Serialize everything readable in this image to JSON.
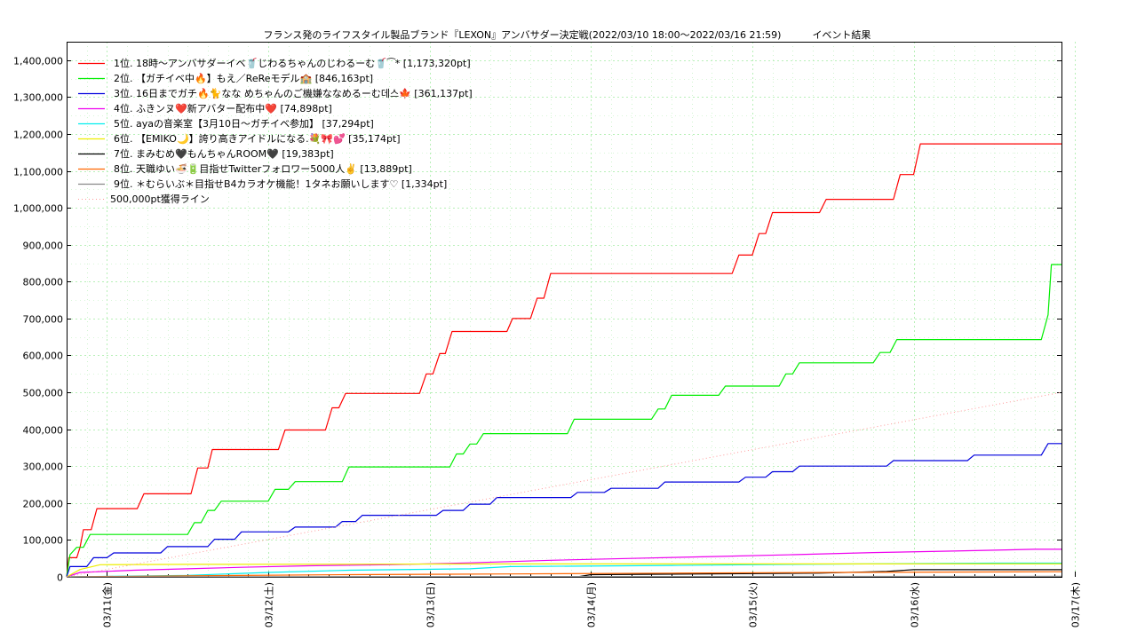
{
  "chart_data": {
    "type": "line",
    "title": "フランス発のライフスタイル製品ブランド『LEXON』アンバサダー決定戦(2022/03/10 18:00～2022/03/16 21:59)",
    "subtitle": "イベント結果",
    "xlabel": "",
    "ylabel": "",
    "x_range": [
      "2022-03-10 18:00",
      "2022-03-16 22:00"
    ],
    "ylim": [
      0,
      1450000
    ],
    "y_ticks": [
      "0",
      "100,000",
      "200,000",
      "300,000",
      "400,000",
      "500,000",
      "600,000",
      "700,000",
      "800,000",
      "900,000",
      "1,000,000",
      "1,100,000",
      "1,200,000",
      "1,300,000",
      "1,400,000"
    ],
    "x_ticks": [
      {
        "x": "2022-03-11 00:00",
        "label": "03/11(金)"
      },
      {
        "x": "2022-03-12 00:00",
        "label": "03/12(土)"
      },
      {
        "x": "2022-03-13 00:00",
        "label": "03/13(日)"
      },
      {
        "x": "2022-03-14 00:00",
        "label": "03/14(月)"
      },
      {
        "x": "2022-03-15 00:00",
        "label": "03/15(火)"
      },
      {
        "x": "2022-03-16 00:00",
        "label": "03/16(水)"
      },
      {
        "x": "2022-03-17 00:00",
        "label": "03/17(木)"
      }
    ],
    "grid": true,
    "legend_position": "top-left",
    "series": [
      {
        "name": "1位. 18時〜アンバサダーイベ🥤じわるちゃんのじわるーむ🥤⁀*",
        "label": "1位. 18時〜アンバサダーイベ🥤じわるちゃんのじわるーむ🥤⁀* [1,173,320pt]",
        "color": "#ff0000",
        "points": [
          [
            "2022-03-10 18:00",
            0
          ],
          [
            "2022-03-10 18:20",
            52000
          ],
          [
            "2022-03-10 19:30",
            52000
          ],
          [
            "2022-03-10 20:00",
            80000
          ],
          [
            "2022-03-10 20:30",
            128000
          ],
          [
            "2022-03-10 21:40",
            128000
          ],
          [
            "2022-03-10 22:30",
            185000
          ],
          [
            "2022-03-11 04:30",
            185000
          ],
          [
            "2022-03-11 05:30",
            225000
          ],
          [
            "2022-03-11 12:30",
            225000
          ],
          [
            "2022-03-11 13:30",
            295000
          ],
          [
            "2022-03-11 15:00",
            295000
          ],
          [
            "2022-03-11 15:40",
            345000
          ],
          [
            "2022-03-12 01:30",
            345000
          ],
          [
            "2022-03-12 02:30",
            398000
          ],
          [
            "2022-03-12 08:30",
            398000
          ],
          [
            "2022-03-12 09:30",
            458000
          ],
          [
            "2022-03-12 10:30",
            458000
          ],
          [
            "2022-03-12 11:30",
            497000
          ],
          [
            "2022-03-12 22:30",
            497000
          ],
          [
            "2022-03-12 23:30",
            550000
          ],
          [
            "2022-03-13 00:30",
            550000
          ],
          [
            "2022-03-13 01:30",
            605000
          ],
          [
            "2022-03-13 02:20",
            605000
          ],
          [
            "2022-03-13 03:20",
            665000
          ],
          [
            "2022-03-13 11:30",
            665000
          ],
          [
            "2022-03-13 12:20",
            700000
          ],
          [
            "2022-03-13 15:00",
            700000
          ],
          [
            "2022-03-13 16:00",
            755000
          ],
          [
            "2022-03-13 17:00",
            755000
          ],
          [
            "2022-03-13 18:00",
            822000
          ],
          [
            "2022-03-14 21:00",
            822000
          ],
          [
            "2022-03-14 22:00",
            872000
          ],
          [
            "2022-03-15 00:00",
            872000
          ],
          [
            "2022-03-15 01:00",
            930000
          ],
          [
            "2022-03-15 02:00",
            930000
          ],
          [
            "2022-03-15 03:00",
            987000
          ],
          [
            "2022-03-15 10:00",
            987000
          ],
          [
            "2022-03-15 11:00",
            1023000
          ],
          [
            "2022-03-15 21:00",
            1023000
          ],
          [
            "2022-03-15 22:00",
            1090000
          ],
          [
            "2022-03-16 00:00",
            1090000
          ],
          [
            "2022-03-16 01:00",
            1173320
          ],
          [
            "2022-03-16 22:00",
            1173320
          ]
        ]
      },
      {
        "name": "2位. 【ガチイベ中🔥】もえ／ReReモデル🏫",
        "label": "2位. 【ガチイベ中🔥】もえ／ReReモデル🏫 [846,163pt]",
        "color": "#00ee00",
        "points": [
          [
            "2022-03-10 18:00",
            0
          ],
          [
            "2022-03-10 18:30",
            60000
          ],
          [
            "2022-03-10 19:30",
            80000
          ],
          [
            "2022-03-10 20:30",
            80000
          ],
          [
            "2022-03-10 21:30",
            115000
          ],
          [
            "2022-03-11 12:00",
            115000
          ],
          [
            "2022-03-11 13:00",
            147000
          ],
          [
            "2022-03-11 14:00",
            147000
          ],
          [
            "2022-03-11 15:00",
            180000
          ],
          [
            "2022-03-11 16:00",
            180000
          ],
          [
            "2022-03-11 17:00",
            205000
          ],
          [
            "2022-03-12 00:00",
            205000
          ],
          [
            "2022-03-12 01:00",
            237000
          ],
          [
            "2022-03-12 03:00",
            237000
          ],
          [
            "2022-03-12 04:00",
            258000
          ],
          [
            "2022-03-12 11:00",
            258000
          ],
          [
            "2022-03-12 12:00",
            298000
          ],
          [
            "2022-03-13 03:00",
            298000
          ],
          [
            "2022-03-13 04:00",
            333000
          ],
          [
            "2022-03-13 05:00",
            333000
          ],
          [
            "2022-03-13 06:00",
            360000
          ],
          [
            "2022-03-13 07:00",
            360000
          ],
          [
            "2022-03-13 08:00",
            388000
          ],
          [
            "2022-03-13 20:30",
            388000
          ],
          [
            "2022-03-13 21:30",
            427000
          ],
          [
            "2022-03-14 09:00",
            427000
          ],
          [
            "2022-03-14 10:00",
            455000
          ],
          [
            "2022-03-14 11:00",
            455000
          ],
          [
            "2022-03-14 12:00",
            492000
          ],
          [
            "2022-03-14 19:00",
            492000
          ],
          [
            "2022-03-14 20:00",
            517000
          ],
          [
            "2022-03-15 04:00",
            517000
          ],
          [
            "2022-03-15 05:00",
            550000
          ],
          [
            "2022-03-15 06:00",
            550000
          ],
          [
            "2022-03-15 07:00",
            580000
          ],
          [
            "2022-03-15 18:00",
            580000
          ],
          [
            "2022-03-15 19:00",
            608000
          ],
          [
            "2022-03-15 20:30",
            608000
          ],
          [
            "2022-03-15 21:30",
            643000
          ],
          [
            "2022-03-16 19:00",
            643000
          ],
          [
            "2022-03-16 20:00",
            710000
          ],
          [
            "2022-03-16 20:30",
            846163
          ],
          [
            "2022-03-16 22:00",
            846163
          ]
        ]
      },
      {
        "name": "3位. 16日までガチ🔥🐈なな めちゃんのご機嫌ななめるーむ데스🍁",
        "label": "3位. 16日までガチ🔥🐈なな めちゃんのご機嫌ななめるーむ데스🍁 [361,137pt]",
        "color": "#0000dd",
        "points": [
          [
            "2022-03-10 18:00",
            0
          ],
          [
            "2022-03-10 18:30",
            28000
          ],
          [
            "2022-03-10 21:00",
            28000
          ],
          [
            "2022-03-10 22:00",
            52000
          ],
          [
            "2022-03-11 00:00",
            52000
          ],
          [
            "2022-03-11 01:00",
            65000
          ],
          [
            "2022-03-11 08:00",
            65000
          ],
          [
            "2022-03-11 09:00",
            82000
          ],
          [
            "2022-03-11 15:00",
            82000
          ],
          [
            "2022-03-11 16:00",
            102000
          ],
          [
            "2022-03-11 19:00",
            102000
          ],
          [
            "2022-03-11 20:00",
            122000
          ],
          [
            "2022-03-12 03:00",
            122000
          ],
          [
            "2022-03-12 04:00",
            135000
          ],
          [
            "2022-03-12 10:00",
            135000
          ],
          [
            "2022-03-12 11:00",
            150000
          ],
          [
            "2022-03-12 13:00",
            150000
          ],
          [
            "2022-03-12 14:00",
            167000
          ],
          [
            "2022-03-13 01:00",
            167000
          ],
          [
            "2022-03-13 02:00",
            180000
          ],
          [
            "2022-03-13 05:00",
            180000
          ],
          [
            "2022-03-13 06:00",
            197000
          ],
          [
            "2022-03-13 09:00",
            197000
          ],
          [
            "2022-03-13 10:00",
            215000
          ],
          [
            "2022-03-13 21:00",
            215000
          ],
          [
            "2022-03-13 22:00",
            229000
          ],
          [
            "2022-03-14 02:00",
            229000
          ],
          [
            "2022-03-14 03:00",
            240000
          ],
          [
            "2022-03-14 10:00",
            240000
          ],
          [
            "2022-03-14 11:00",
            257000
          ],
          [
            "2022-03-14 22:00",
            257000
          ],
          [
            "2022-03-14 23:00",
            270000
          ],
          [
            "2022-03-15 02:00",
            270000
          ],
          [
            "2022-03-15 03:00",
            285000
          ],
          [
            "2022-03-15 06:00",
            285000
          ],
          [
            "2022-03-15 07:00",
            300000
          ],
          [
            "2022-03-15 20:00",
            300000
          ],
          [
            "2022-03-15 21:00",
            315000
          ],
          [
            "2022-03-16 08:00",
            315000
          ],
          [
            "2022-03-16 09:00",
            330000
          ],
          [
            "2022-03-16 19:00",
            330000
          ],
          [
            "2022-03-16 20:00",
            361137
          ],
          [
            "2022-03-16 22:00",
            361137
          ]
        ]
      },
      {
        "name": "4位. ふきンヌ❤️新アバター配布中❤️",
        "label": "4位. ふきンヌ❤️新アバター配布中❤️ [74,898pt]",
        "color": "#ee00ee",
        "points": [
          [
            "2022-03-10 18:00",
            0
          ],
          [
            "2022-03-10 20:00",
            12000
          ],
          [
            "2022-03-11 04:00",
            18000
          ],
          [
            "2022-03-11 12:00",
            22000
          ],
          [
            "2022-03-11 20:00",
            26000
          ],
          [
            "2022-03-12 06:00",
            30000
          ],
          [
            "2022-03-12 18:00",
            33000
          ],
          [
            "2022-03-13 06:00",
            38000
          ],
          [
            "2022-03-13 18:00",
            45000
          ],
          [
            "2022-03-14 06:00",
            50000
          ],
          [
            "2022-03-14 18:00",
            55000
          ],
          [
            "2022-03-15 06:00",
            60000
          ],
          [
            "2022-03-15 18:00",
            66000
          ],
          [
            "2022-03-16 06:00",
            70000
          ],
          [
            "2022-03-16 18:00",
            74898
          ],
          [
            "2022-03-16 22:00",
            74898
          ]
        ]
      },
      {
        "name": "5位. ayaの音楽室【3月10日〜ガチイベ参加】",
        "label": "5位. ayaの音楽室【3月10日〜ガチイベ参加】 [37,294pt]",
        "color": "#00eeee",
        "points": [
          [
            "2022-03-10 18:00",
            0
          ],
          [
            "2022-03-11 12:00",
            4000
          ],
          [
            "2022-03-12 00:00",
            12000
          ],
          [
            "2022-03-12 12:00",
            18000
          ],
          [
            "2022-03-13 06:00",
            22000
          ],
          [
            "2022-03-13 12:00",
            28000
          ],
          [
            "2022-03-14 12:00",
            31000
          ],
          [
            "2022-03-15 06:00",
            34000
          ],
          [
            "2022-03-16 12:00",
            37294
          ],
          [
            "2022-03-16 22:00",
            37294
          ]
        ]
      },
      {
        "name": "6位. 【EMIKO🌙】誇り高きアイドルになる.💐🎀💕",
        "label": "6位. 【EMIKO🌙】誇り高きアイドルになる.💐🎀💕 [35,174pt]",
        "color": "#eeee00",
        "points": [
          [
            "2022-03-10 18:00",
            0
          ],
          [
            "2022-03-10 20:00",
            20000
          ],
          [
            "2022-03-10 23:00",
            33000
          ],
          [
            "2022-03-11 12:00",
            34000
          ],
          [
            "2022-03-12 12:00",
            34500
          ],
          [
            "2022-03-13 12:00",
            35000
          ],
          [
            "2022-03-16 22:00",
            35174
          ]
        ]
      },
      {
        "name": "7位. まみむめ🖤もんちゃんROOM🖤",
        "label": "7位. まみむめ🖤もんちゃんROOM🖤 [19,383pt]",
        "color": "#000000",
        "points": [
          [
            "2022-03-13 22:00",
            0
          ],
          [
            "2022-03-14 00:00",
            6000
          ],
          [
            "2022-03-15 10:00",
            10000
          ],
          [
            "2022-03-15 20:00",
            15000
          ],
          [
            "2022-03-16 00:00",
            19383
          ],
          [
            "2022-03-16 22:00",
            19383
          ]
        ]
      },
      {
        "name": "8位. 天職ゆい🍜🔋目指せTwitterフォロワー5000人✌️",
        "label": "8位. 天職ゆい🍜🔋目指せTwitterフォロワー5000人✌️ [13,889pt]",
        "color": "#ff6600",
        "points": [
          [
            "2022-03-10 18:00",
            0
          ],
          [
            "2022-03-11 12:00",
            3000
          ],
          [
            "2022-03-12 12:00",
            6000
          ],
          [
            "2022-03-13 12:00",
            8000
          ],
          [
            "2022-03-14 12:00",
            10000
          ],
          [
            "2022-03-15 12:00",
            12000
          ],
          [
            "2022-03-16 22:00",
            13889
          ]
        ]
      },
      {
        "name": "9位. ＊むらいぶ＊目指せB4カラオケ機能！1タネお願いします♡",
        "label": "9位. ＊むらいぶ＊目指せB4カラオケ機能！1タネお願いします♡ [1,334pt]",
        "color": "#888888",
        "points": [
          [
            "2022-03-10 18:00",
            0
          ],
          [
            "2022-03-12 00:00",
            500
          ],
          [
            "2022-03-14 00:00",
            1000
          ],
          [
            "2022-03-16 22:00",
            1334
          ]
        ]
      },
      {
        "name": "500,000pt獲得ライン",
        "label": "500,000pt獲得ライン",
        "color": "#ff9999",
        "dashed": true,
        "points": [
          [
            "2022-03-10 18:00",
            0
          ],
          [
            "2022-03-16 22:00",
            500000
          ]
        ]
      }
    ]
  }
}
